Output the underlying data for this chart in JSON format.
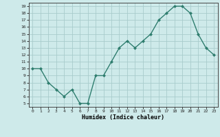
{
  "x": [
    0,
    1,
    2,
    3,
    4,
    5,
    6,
    7,
    8,
    9,
    10,
    11,
    12,
    13,
    14,
    15,
    16,
    17,
    18,
    19,
    20,
    21,
    22,
    23
  ],
  "y": [
    10,
    10,
    8,
    7,
    6,
    7,
    5,
    5,
    9,
    9,
    11,
    13,
    14,
    13,
    14,
    15,
    17,
    18,
    19,
    19,
    18,
    15,
    13,
    12
  ],
  "xlabel": "Humidex (Indice chaleur)",
  "line_color": "#2e7d6e",
  "marker": "D",
  "marker_size": 2,
  "bg_color": "#ceeaea",
  "grid_color": "#a8cccc",
  "ylim": [
    4.5,
    19.5
  ],
  "xlim": [
    -0.5,
    23.5
  ],
  "yticks": [
    5,
    6,
    7,
    8,
    9,
    10,
    11,
    12,
    13,
    14,
    15,
    16,
    17,
    18,
    19
  ],
  "xticks": [
    0,
    1,
    2,
    3,
    4,
    5,
    6,
    7,
    8,
    9,
    10,
    11,
    12,
    13,
    14,
    15,
    16,
    17,
    18,
    19,
    20,
    21,
    22,
    23
  ]
}
